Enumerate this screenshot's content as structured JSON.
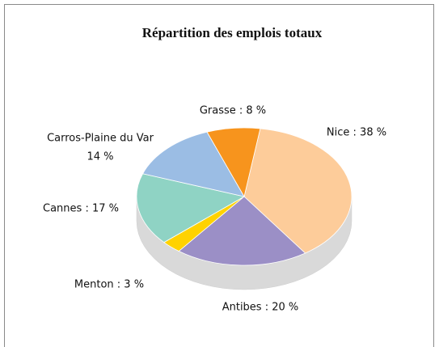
{
  "chart_data": {
    "type": "pie",
    "title": "Répartition des emplois totaux",
    "categories": [
      "Nice",
      "Antibes",
      "Menton",
      "Cannes",
      "Carros-Plaine du Var",
      "Grasse"
    ],
    "values": [
      38,
      20,
      3,
      17,
      14,
      8
    ],
    "value_labels": [
      "Nice : 38 %",
      "Antibes : 20 %",
      "Menton : 3 %",
      "Cannes : 17 %",
      "Carros-Plaine du Var\n14 %",
      "Grasse : 8 %"
    ],
    "colors": [
      "#fdcc9a",
      "#9b8fc6",
      "#ffd200",
      "#8fd3c4",
      "#9bbde4",
      "#f7941d"
    ]
  }
}
